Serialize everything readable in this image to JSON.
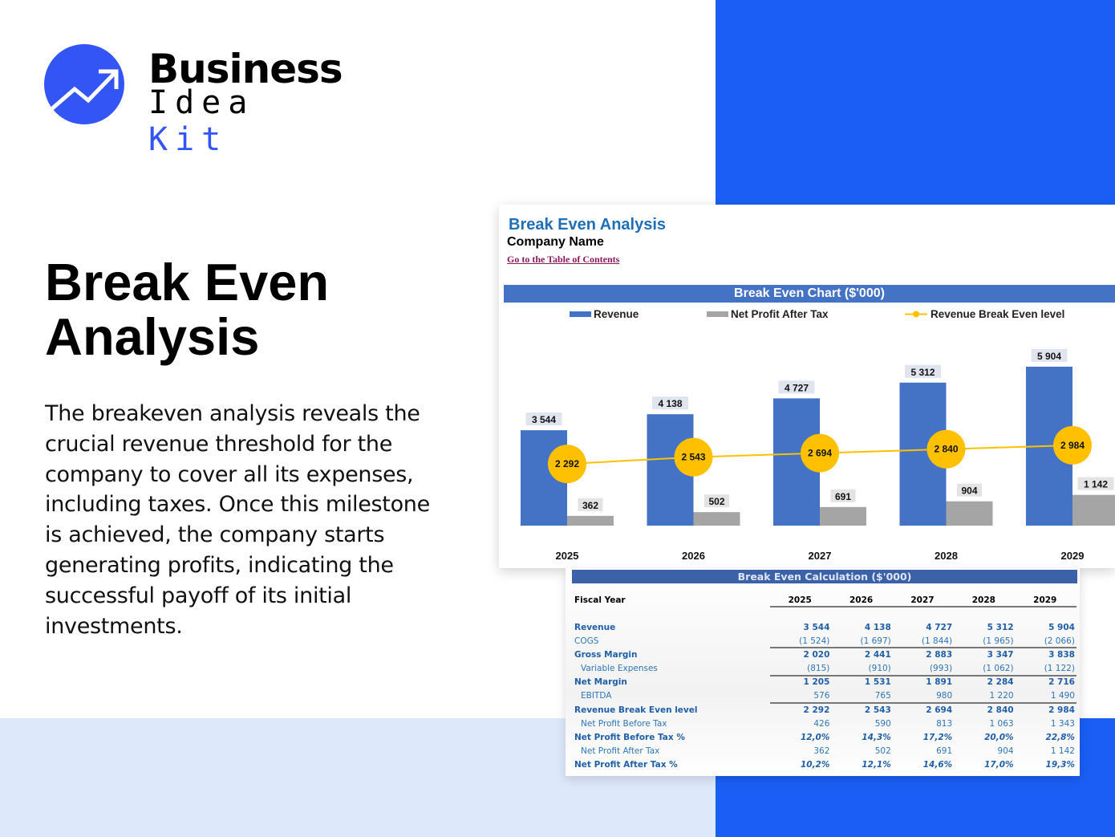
{
  "brand": {
    "line1": "Business",
    "line2a": "Idea",
    "line2b": "Kit",
    "accent": "#3355f5"
  },
  "headline": "Break Even Analysis",
  "description": "The breakeven analysis reveals the crucial revenue threshold for the company to cover all its expenses, including taxes. Once this milestone is achieved, the company starts generating profits, indicating the successful payoff of its initial investments.",
  "sheet": {
    "title": "Break Even Analysis",
    "company": "Company Name",
    "toc_link": "Go to the Table of Contents"
  },
  "chart_data": {
    "type": "bar",
    "title": "Break Even Chart ($'000)",
    "categories": [
      "2025",
      "2026",
      "2027",
      "2028",
      "2029"
    ],
    "series": [
      {
        "name": "Revenue",
        "kind": "bar",
        "color": "#4472c4",
        "values": [
          3544,
          4138,
          4727,
          5312,
          5904
        ],
        "labels": [
          "3 544",
          "4 138",
          "4 727",
          "5 312",
          "5 904"
        ]
      },
      {
        "name": "Net Profit After Tax",
        "kind": "bar",
        "color": "#a5a5a5",
        "values": [
          362,
          502,
          691,
          904,
          1142
        ],
        "labels": [
          "362",
          "502",
          "691",
          "904",
          "1 142"
        ]
      },
      {
        "name": "Revenue Break Even level",
        "kind": "line",
        "color": "#ffc000",
        "values": [
          2292,
          2543,
          2694,
          2840,
          2984
        ],
        "labels": [
          "2 292",
          "2 543",
          "2 694",
          "2 840",
          "2 984"
        ]
      }
    ],
    "legend": "top",
    "grid": false,
    "ylim": [
      0,
      6500
    ]
  },
  "table": {
    "title": "Break Even Calculation ($'000)",
    "header": "Fiscal Year",
    "years": [
      "2025",
      "2026",
      "2027",
      "2028",
      "2029"
    ],
    "rows": [
      {
        "label": "Revenue",
        "style": "main",
        "values": [
          "3 544",
          "4 138",
          "4 727",
          "5 312",
          "5 904"
        ]
      },
      {
        "label": "COGS",
        "style": "plain",
        "values": [
          "(1 524)",
          "(1 697)",
          "(1 844)",
          "(1 965)",
          "(2 066)"
        ]
      },
      {
        "label": "Gross Margin",
        "style": "main",
        "values": [
          "2 020",
          "2 441",
          "2 883",
          "3 347",
          "3 838"
        ]
      },
      {
        "label": "Variable Expenses",
        "style": "sub",
        "values": [
          "(815)",
          "(910)",
          "(993)",
          "(1 062)",
          "(1 122)"
        ]
      },
      {
        "label": "Net Margin",
        "style": "main",
        "values": [
          "1 205",
          "1 531",
          "1 891",
          "2 284",
          "2 716"
        ]
      },
      {
        "label": "EBITDA",
        "style": "sub",
        "values": [
          "576",
          "765",
          "980",
          "1 220",
          "1 490"
        ]
      },
      {
        "label": "Revenue Break Even level",
        "style": "main",
        "values": [
          "2 292",
          "2 543",
          "2 694",
          "2 840",
          "2 984"
        ]
      },
      {
        "label": "Net Profit Before Tax",
        "style": "sub",
        "values": [
          "426",
          "590",
          "813",
          "1 063",
          "1 343"
        ]
      },
      {
        "label": "Net Profit Before Tax %",
        "style": "pct",
        "values": [
          "12,0%",
          "14,3%",
          "17,2%",
          "20,0%",
          "22,8%"
        ]
      },
      {
        "label": "Net Profit After Tax",
        "style": "sub",
        "values": [
          "362",
          "502",
          "691",
          "904",
          "1 142"
        ]
      },
      {
        "label": "Net Profit After Tax %",
        "style": "pct",
        "values": [
          "10,2%",
          "12,1%",
          "14,6%",
          "17,0%",
          "19,3%"
        ]
      }
    ]
  }
}
